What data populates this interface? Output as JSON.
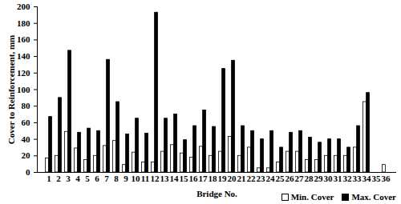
{
  "chart_data": {
    "type": "bar",
    "x_label": "Bridge No.",
    "y_label": "Cover to Reinforcement, mm",
    "categories": [
      "1",
      "2",
      "3",
      "4",
      "5",
      "6",
      "7",
      "8",
      "9",
      "10",
      "11",
      "12",
      "13",
      "14",
      "15",
      "16",
      "17",
      "18",
      "19",
      "20",
      "21",
      "22",
      "23",
      "24",
      "25",
      "26",
      "27",
      "28",
      "29",
      "30",
      "31",
      "32",
      "33",
      "34",
      "35",
      "36"
    ],
    "series": [
      {
        "name": "Min. Cover",
        "color": "#ffffff",
        "values": [
          17,
          20,
          49,
          29,
          15,
          20,
          32,
          38,
          9,
          24,
          12,
          12,
          25,
          33,
          23,
          18,
          31,
          20,
          25,
          43,
          20,
          30,
          5,
          5,
          12,
          25,
          25,
          15,
          15,
          20,
          20,
          20,
          30,
          85,
          null,
          9
        ]
      },
      {
        "name": "Max. Cover",
        "color": "#000000",
        "values": [
          67,
          90,
          147,
          48,
          53,
          50,
          136,
          85,
          46,
          65,
          47,
          193,
          65,
          70,
          39,
          56,
          75,
          55,
          125,
          135,
          56,
          50,
          40,
          50,
          30,
          48,
          50,
          42,
          36,
          40,
          40,
          30,
          56,
          96,
          null,
          null
        ]
      }
    ],
    "ylim": [
      0,
      200
    ],
    "yticks": [
      0,
      20,
      40,
      60,
      80,
      100,
      120,
      140,
      160,
      180,
      200
    ],
    "grid": false,
    "legend": "bottom-right"
  }
}
